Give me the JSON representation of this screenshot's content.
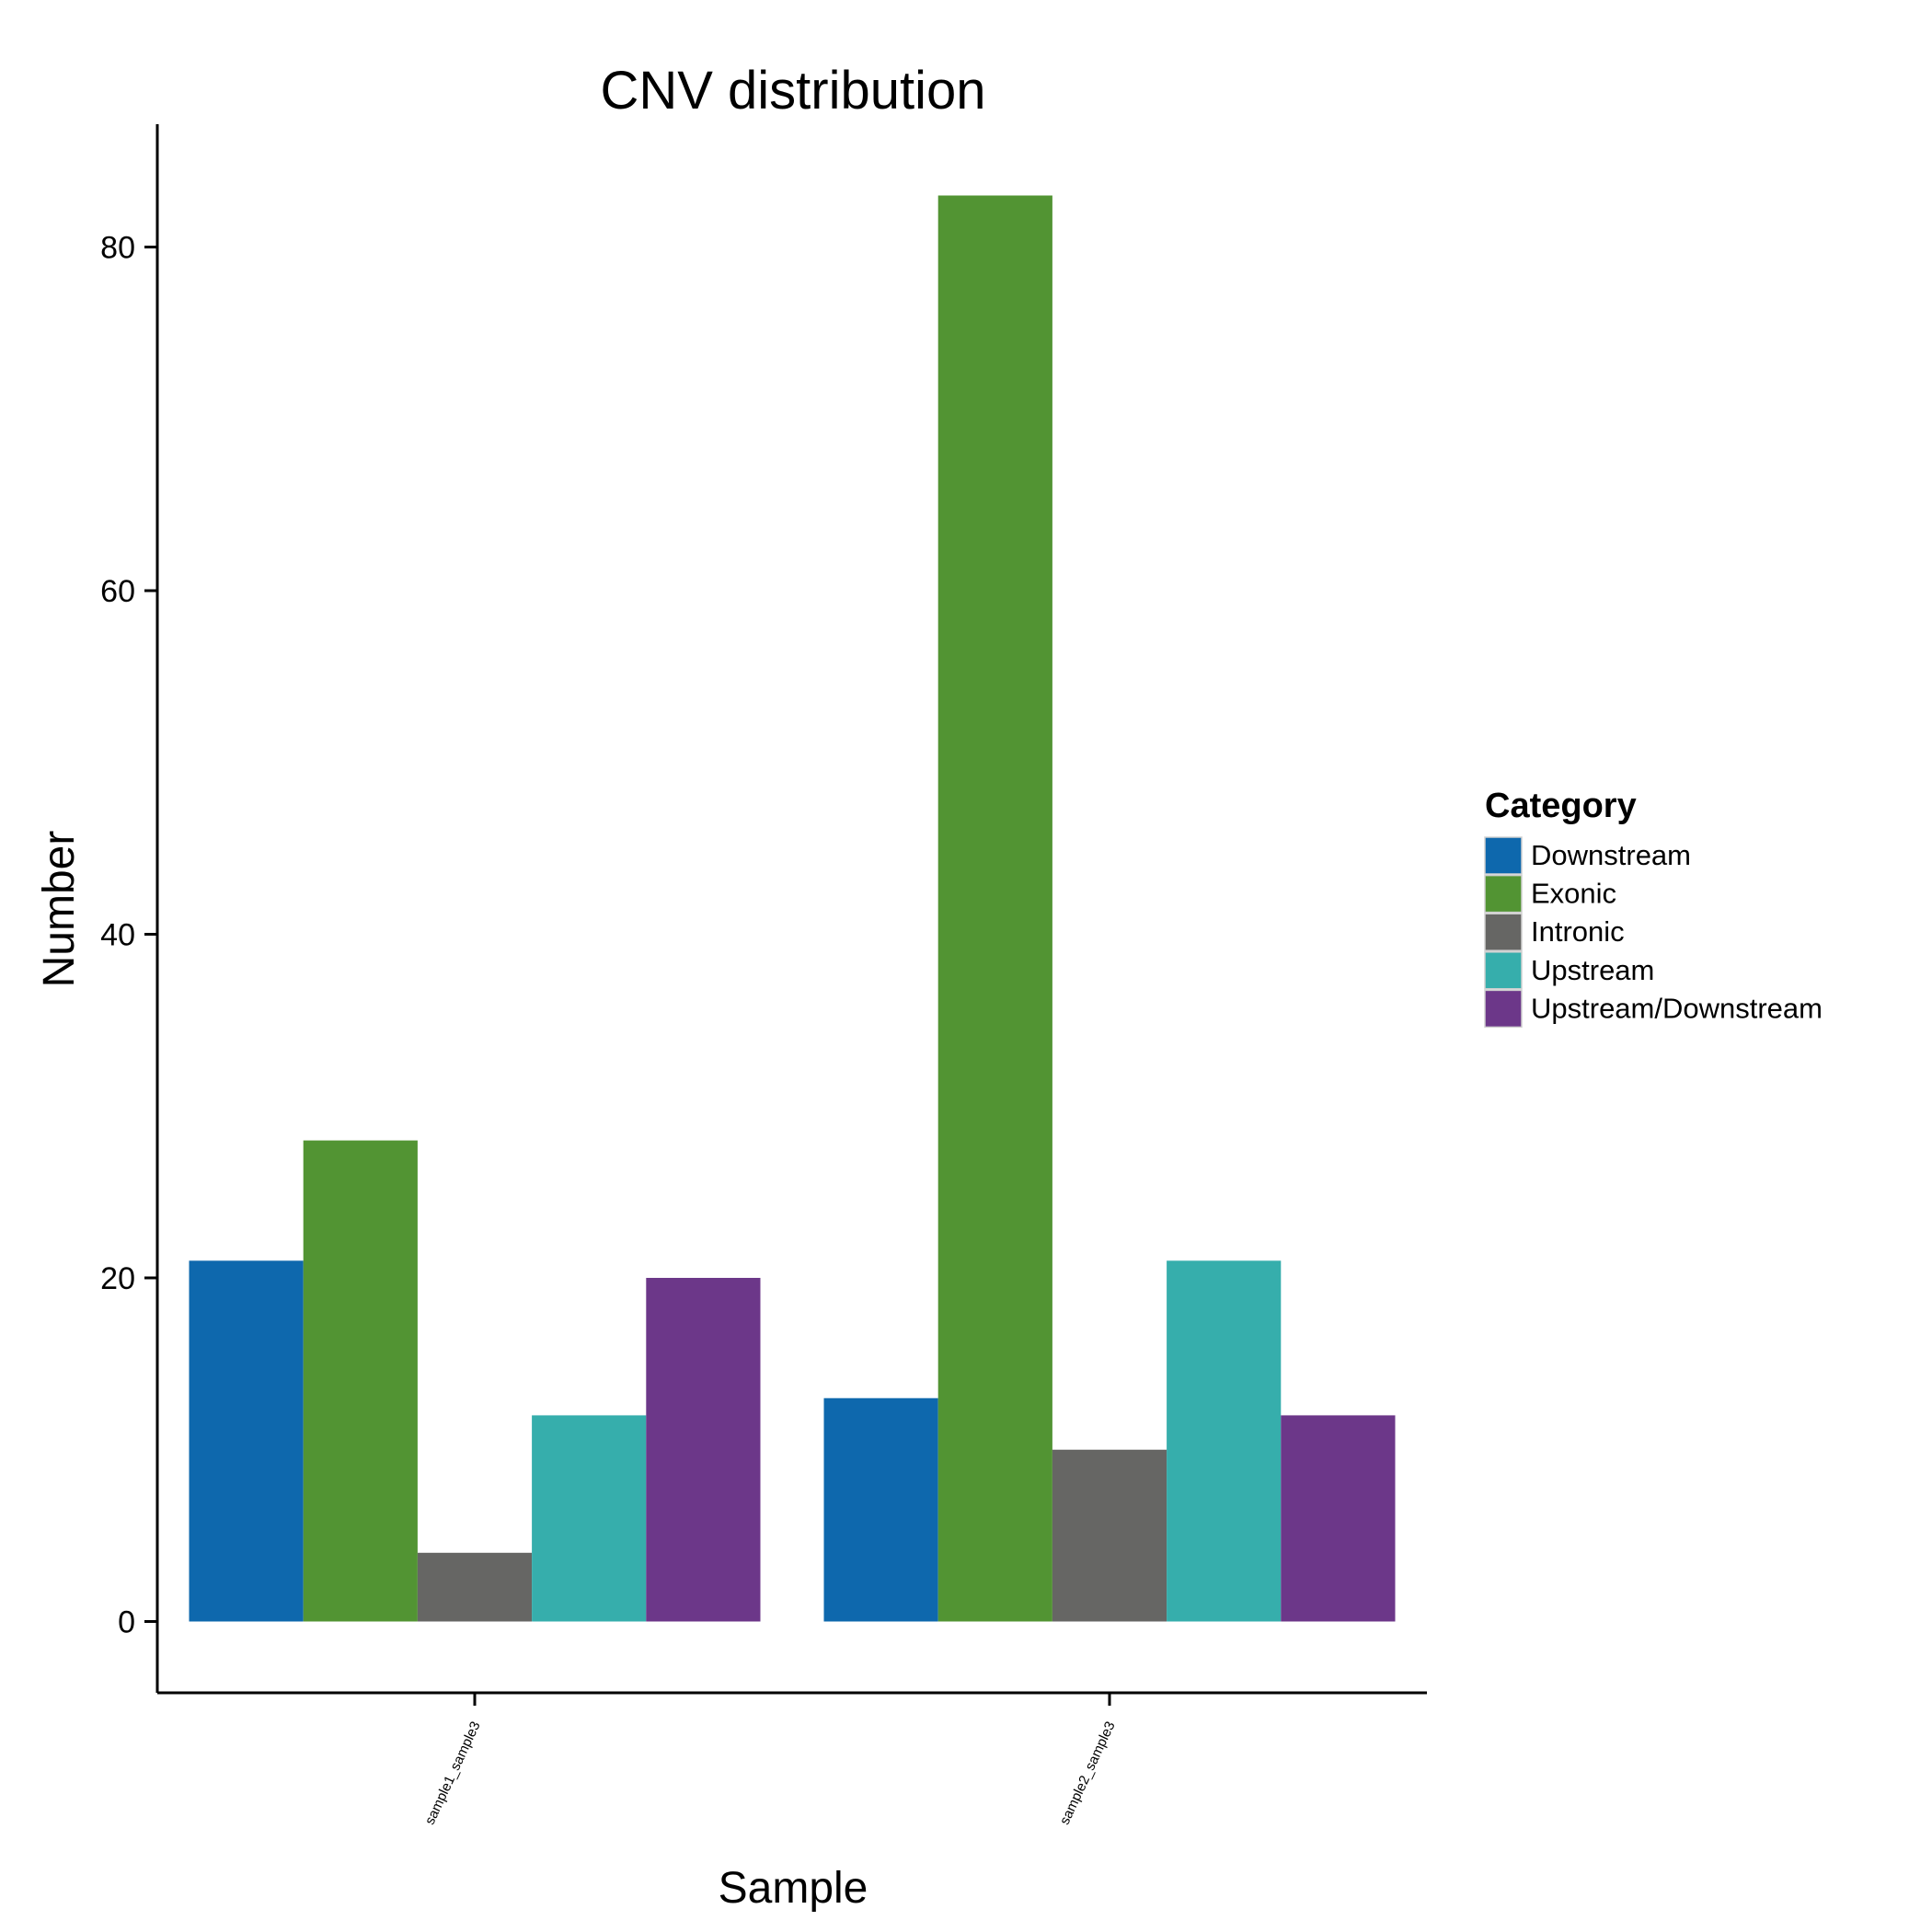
{
  "chart_data": {
    "type": "bar",
    "title": "CNV distribution",
    "xlabel": "Sample",
    "ylabel": "Number",
    "categories": [
      "sample1_sample3",
      "sample2_sample3"
    ],
    "series": [
      {
        "name": "Downstream",
        "color": "#0e68ad",
        "values": [
          21,
          13
        ]
      },
      {
        "name": "Exonic",
        "color": "#529433",
        "values": [
          28,
          83
        ]
      },
      {
        "name": "Intronic",
        "color": "#666664",
        "values": [
          4,
          10
        ]
      },
      {
        "name": "Upstream",
        "color": "#36aeac",
        "values": [
          12,
          21
        ]
      },
      {
        "name": "Upstream/Downstream",
        "color": "#6c3789",
        "values": [
          20,
          12
        ]
      }
    ],
    "yticks": [
      0,
      20,
      40,
      60,
      80
    ],
    "ylim": [
      -4.15,
      87.15
    ],
    "grid": false,
    "legend": {
      "title": "Category",
      "position": "right"
    }
  }
}
